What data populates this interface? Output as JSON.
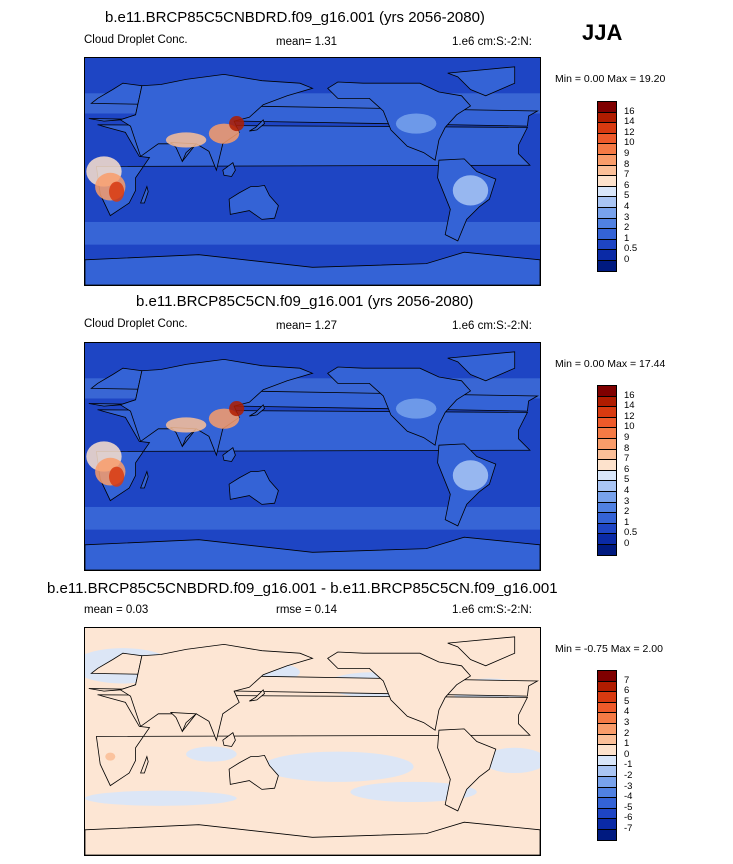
{
  "season": "JJA",
  "panels": [
    {
      "title": "b.e11.BRCP85C5CNBDRD.f09_g16.001 (yrs 2056-2080)",
      "left_label": "Cloud Droplet Conc.",
      "mid_label": "mean=   1.31",
      "units": "1.e6 cm:S:-2:N:",
      "minmax": "Min =   0.00 Max =  19.20",
      "palette": "abs",
      "colorbar_labels": [
        "16",
        "14",
        "12",
        "10",
        "9",
        "8",
        "7",
        "6",
        "5",
        "4",
        "3",
        "2",
        "1",
        "0.5",
        "0"
      ],
      "colorbar_colors": [
        "#7f0000",
        "#b01c00",
        "#d83a10",
        "#ee5a2a",
        "#f57a45",
        "#f99c6a",
        "#fbbf98",
        "#fde2cc",
        "#d8e6fa",
        "#a9c5f4",
        "#78a2ec",
        "#5081e2",
        "#3463d6",
        "#1e45c4",
        "#0a2aa6",
        "#001a80"
      ]
    },
    {
      "title": "b.e11.BRCP85C5CN.f09_g16.001 (yrs 2056-2080)",
      "left_label": "Cloud Droplet Conc.",
      "mid_label": "mean=   1.27",
      "units": "1.e6 cm:S:-2:N:",
      "minmax": "Min =   0.00 Max =  17.44",
      "palette": "abs",
      "colorbar_labels": [
        "16",
        "14",
        "12",
        "10",
        "9",
        "8",
        "7",
        "6",
        "5",
        "4",
        "3",
        "2",
        "1",
        "0.5",
        "0"
      ],
      "colorbar_colors": [
        "#7f0000",
        "#b01c00",
        "#d83a10",
        "#ee5a2a",
        "#f57a45",
        "#f99c6a",
        "#fbbf98",
        "#fde2cc",
        "#d8e6fa",
        "#a9c5f4",
        "#78a2ec",
        "#5081e2",
        "#3463d6",
        "#1e45c4",
        "#0a2aa6",
        "#001a80"
      ]
    },
    {
      "title": "b.e11.BRCP85C5CNBDRD.f09_g16.001 - b.e11.BRCP85C5CN.f09_g16.001",
      "left_label": "mean =   0.03",
      "mid_label": "rmse =   0.14",
      "units": "1.e6 cm:S:-2:N:",
      "minmax": "Min =  -0.75 Max =   2.00",
      "palette": "diff",
      "colorbar_labels": [
        "7",
        "6",
        "5",
        "4",
        "3",
        "2",
        "1",
        "0",
        "-1",
        "-2",
        "-3",
        "-4",
        "-5",
        "-6",
        "-7"
      ],
      "colorbar_colors": [
        "#7f0000",
        "#b01c00",
        "#d83a10",
        "#ee5a2a",
        "#f57a45",
        "#f99c6a",
        "#fbbf98",
        "#fde2cc",
        "#d8e6fa",
        "#a9c5f4",
        "#78a2ec",
        "#5081e2",
        "#3463d6",
        "#1e45c4",
        "#0a2aa6",
        "#001a80"
      ]
    }
  ],
  "chart_data": [
    {
      "type": "heatmap",
      "title": "b.e11.BRCP85C5CNBDRD.f09_g16.001 (yrs 2056-2080)",
      "variable": "Cloud Droplet Conc.",
      "units": "1.e6 cm:S:-2:N:",
      "mean": 1.31,
      "min": 0.0,
      "max": 19.2,
      "contour_levels": [
        0,
        0.5,
        1,
        2,
        3,
        4,
        5,
        6,
        7,
        8,
        9,
        10,
        12,
        14,
        16
      ]
    },
    {
      "type": "heatmap",
      "title": "b.e11.BRCP85C5CN.f09_g16.001 (yrs 2056-2080)",
      "variable": "Cloud Droplet Conc.",
      "units": "1.e6 cm:S:-2:N:",
      "mean": 1.27,
      "min": 0.0,
      "max": 17.44,
      "contour_levels": [
        0,
        0.5,
        1,
        2,
        3,
        4,
        5,
        6,
        7,
        8,
        9,
        10,
        12,
        14,
        16
      ]
    },
    {
      "type": "heatmap",
      "title": "b.e11.BRCP85C5CNBDRD.f09_g16.001 - b.e11.BRCP85C5CN.f09_g16.001",
      "units": "1.e6 cm:S:-2:N:",
      "mean": 0.03,
      "rmse": 0.14,
      "min": -0.75,
      "max": 2.0,
      "contour_levels": [
        -7,
        -6,
        -5,
        -4,
        -3,
        -2,
        -1,
        0,
        1,
        2,
        3,
        4,
        5,
        6,
        7
      ]
    }
  ]
}
